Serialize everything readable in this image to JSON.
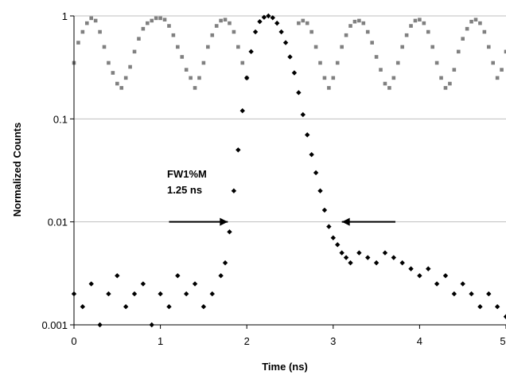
{
  "chart_data": {
    "type": "scatter",
    "title": "",
    "xlabel": "Time (ns)",
    "ylabel": "Normalized Counts",
    "xlim": [
      0,
      5
    ],
    "ylim": [
      0.001,
      1
    ],
    "yscale": "log",
    "grid": "horizontal",
    "x_ticks": [
      "0",
      "1",
      "2",
      "3",
      "4",
      "5"
    ],
    "y_ticks": [
      "0.001",
      "0.01",
      "0.1",
      "1"
    ],
    "colors": {
      "series_gray": "#808080",
      "series_black": "#000000",
      "grid": "#bfbfbf"
    },
    "series": [
      {
        "marker": "square",
        "color": "#808080",
        "description_x": "periodic signal, period ~0.8 ns, peaks near 0.2, 1.05, 1.85, 2.65, 3.45, 4.25, 5.0 ns",
        "points": [
          [
            0.0,
            0.35
          ],
          [
            0.05,
            0.55
          ],
          [
            0.1,
            0.7
          ],
          [
            0.15,
            0.85
          ],
          [
            0.2,
            0.95
          ],
          [
            0.25,
            0.9
          ],
          [
            0.3,
            0.7
          ],
          [
            0.35,
            0.5
          ],
          [
            0.4,
            0.35
          ],
          [
            0.45,
            0.28
          ],
          [
            0.5,
            0.22
          ],
          [
            0.55,
            0.2
          ],
          [
            0.6,
            0.25
          ],
          [
            0.65,
            0.32
          ],
          [
            0.7,
            0.45
          ],
          [
            0.75,
            0.6
          ],
          [
            0.8,
            0.75
          ],
          [
            0.85,
            0.85
          ],
          [
            0.9,
            0.9
          ],
          [
            0.95,
            0.95
          ],
          [
            1.0,
            0.95
          ],
          [
            1.05,
            0.92
          ],
          [
            1.1,
            0.8
          ],
          [
            1.15,
            0.65
          ],
          [
            1.2,
            0.5
          ],
          [
            1.25,
            0.4
          ],
          [
            1.3,
            0.3
          ],
          [
            1.35,
            0.25
          ],
          [
            1.4,
            0.2
          ],
          [
            1.45,
            0.25
          ],
          [
            1.5,
            0.35
          ],
          [
            1.55,
            0.5
          ],
          [
            1.6,
            0.65
          ],
          [
            1.65,
            0.8
          ],
          [
            1.7,
            0.9
          ],
          [
            1.75,
            0.92
          ],
          [
            1.8,
            0.85
          ],
          [
            1.85,
            0.7
          ],
          [
            1.9,
            0.5
          ],
          [
            1.95,
            0.35
          ],
          [
            2.0,
            0.25
          ],
          [
            2.6,
            0.85
          ],
          [
            2.65,
            0.9
          ],
          [
            2.7,
            0.85
          ],
          [
            2.75,
            0.7
          ],
          [
            2.8,
            0.5
          ],
          [
            2.85,
            0.35
          ],
          [
            2.9,
            0.25
          ],
          [
            2.95,
            0.2
          ],
          [
            3.0,
            0.25
          ],
          [
            3.05,
            0.35
          ],
          [
            3.1,
            0.5
          ],
          [
            3.15,
            0.65
          ],
          [
            3.2,
            0.8
          ],
          [
            3.25,
            0.88
          ],
          [
            3.3,
            0.9
          ],
          [
            3.35,
            0.85
          ],
          [
            3.4,
            0.7
          ],
          [
            3.45,
            0.55
          ],
          [
            3.5,
            0.4
          ],
          [
            3.55,
            0.3
          ],
          [
            3.6,
            0.22
          ],
          [
            3.65,
            0.2
          ],
          [
            3.7,
            0.25
          ],
          [
            3.75,
            0.35
          ],
          [
            3.8,
            0.5
          ],
          [
            3.85,
            0.65
          ],
          [
            3.9,
            0.8
          ],
          [
            3.95,
            0.9
          ],
          [
            4.0,
            0.92
          ],
          [
            4.05,
            0.85
          ],
          [
            4.1,
            0.7
          ],
          [
            4.15,
            0.5
          ],
          [
            4.2,
            0.35
          ],
          [
            4.25,
            0.25
          ],
          [
            4.3,
            0.2
          ],
          [
            4.35,
            0.22
          ],
          [
            4.4,
            0.3
          ],
          [
            4.45,
            0.45
          ],
          [
            4.5,
            0.6
          ],
          [
            4.55,
            0.75
          ],
          [
            4.6,
            0.88
          ],
          [
            4.65,
            0.92
          ],
          [
            4.7,
            0.85
          ],
          [
            4.75,
            0.7
          ],
          [
            4.8,
            0.5
          ],
          [
            4.85,
            0.35
          ],
          [
            4.9,
            0.25
          ],
          [
            4.95,
            0.3
          ],
          [
            5.0,
            0.45
          ]
        ]
      },
      {
        "marker": "diamond",
        "color": "#000000",
        "description_x": "instrument response: baseline ~0.001-0.003 before 1.75 ns, sharp peak (1.0) at ~2.25 ns, tail to ~0.004 after 3.2 ns",
        "points": [
          [
            0.0,
            0.002
          ],
          [
            0.1,
            0.0015
          ],
          [
            0.2,
            0.0025
          ],
          [
            0.3,
            0.001
          ],
          [
            0.4,
            0.002
          ],
          [
            0.5,
            0.003
          ],
          [
            0.6,
            0.0015
          ],
          [
            0.7,
            0.002
          ],
          [
            0.8,
            0.0025
          ],
          [
            0.9,
            0.001
          ],
          [
            1.0,
            0.002
          ],
          [
            1.1,
            0.0015
          ],
          [
            1.2,
            0.003
          ],
          [
            1.3,
            0.002
          ],
          [
            1.4,
            0.0025
          ],
          [
            1.5,
            0.0015
          ],
          [
            1.6,
            0.002
          ],
          [
            1.7,
            0.003
          ],
          [
            1.75,
            0.004
          ],
          [
            1.8,
            0.008
          ],
          [
            1.85,
            0.02
          ],
          [
            1.9,
            0.05
          ],
          [
            1.95,
            0.12
          ],
          [
            2.0,
            0.25
          ],
          [
            2.05,
            0.45
          ],
          [
            2.1,
            0.7
          ],
          [
            2.15,
            0.88
          ],
          [
            2.2,
            0.97
          ],
          [
            2.25,
            1.0
          ],
          [
            2.3,
            0.96
          ],
          [
            2.35,
            0.85
          ],
          [
            2.4,
            0.7
          ],
          [
            2.45,
            0.55
          ],
          [
            2.5,
            0.4
          ],
          [
            2.55,
            0.28
          ],
          [
            2.6,
            0.18
          ],
          [
            2.65,
            0.11
          ],
          [
            2.7,
            0.07
          ],
          [
            2.75,
            0.045
          ],
          [
            2.8,
            0.03
          ],
          [
            2.85,
            0.02
          ],
          [
            2.9,
            0.013
          ],
          [
            2.95,
            0.009
          ],
          [
            3.0,
            0.007
          ],
          [
            3.05,
            0.006
          ],
          [
            3.1,
            0.005
          ],
          [
            3.15,
            0.0045
          ],
          [
            3.2,
            0.004
          ],
          [
            3.3,
            0.005
          ],
          [
            3.4,
            0.0045
          ],
          [
            3.5,
            0.004
          ],
          [
            3.6,
            0.005
          ],
          [
            3.7,
            0.0045
          ],
          [
            3.8,
            0.004
          ],
          [
            3.9,
            0.0035
          ],
          [
            4.0,
            0.003
          ],
          [
            4.1,
            0.0035
          ],
          [
            4.2,
            0.0025
          ],
          [
            4.3,
            0.003
          ],
          [
            4.4,
            0.002
          ],
          [
            4.5,
            0.0025
          ],
          [
            4.6,
            0.002
          ],
          [
            4.7,
            0.0015
          ],
          [
            4.8,
            0.002
          ],
          [
            4.9,
            0.0015
          ],
          [
            5.0,
            0.0012
          ]
        ]
      }
    ],
    "annotations": [
      {
        "text_line1": "FW1%M",
        "text_line2": "1.25 ns"
      }
    ],
    "arrows": [
      {
        "direction": "right",
        "y": 0.01,
        "x_start": 1.1,
        "x_end": 1.78
      },
      {
        "direction": "left",
        "y": 0.01,
        "x_start": 3.72,
        "x_end": 3.1
      }
    ]
  }
}
